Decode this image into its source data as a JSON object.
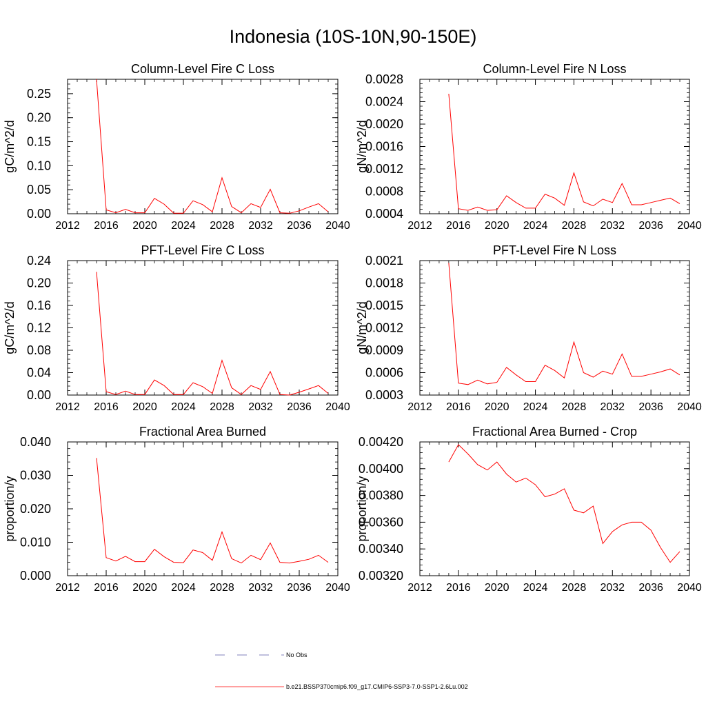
{
  "page_title": "Indonesia (10S-10N,90-150E)",
  "legend": {
    "items": [
      {
        "label": "No Obs",
        "style": "dashed",
        "color": "#5a5aa8"
      },
      {
        "label": "b.e21.BSSP370cmip6.f09_g17.CMIP6-SSP3-7.0-SSP1-2.6Lu.002",
        "style": "solid",
        "color": "#ff0000"
      }
    ]
  },
  "chart_data": [
    {
      "type": "line",
      "title": "Column-Level Fire C Loss",
      "ylabel": "gC/m^2/d",
      "xlim": [
        2012,
        2040
      ],
      "xticks": [
        2012,
        2016,
        2020,
        2024,
        2028,
        2032,
        2036,
        2040
      ],
      "xticklabels": [
        "2012",
        "2016",
        "2020",
        "2024",
        "2028",
        "2032",
        "2036",
        "2040"
      ],
      "ylim": [
        0,
        0.28
      ],
      "yticks": [
        0,
        0.05,
        0.1,
        0.15,
        0.2,
        0.25
      ],
      "yticklabels": [
        "0.00",
        "0.05",
        "0.10",
        "0.15",
        "0.20",
        "0.25"
      ],
      "series": [
        {
          "color": "#ff0000",
          "x": [
            2015,
            2016,
            2017,
            2018,
            2019,
            2020,
            2021,
            2022,
            2023,
            2024,
            2025,
            2026,
            2027,
            2028,
            2029,
            2030,
            2031,
            2032,
            2033,
            2034,
            2035,
            2036,
            2037,
            2038,
            2039
          ],
          "y": [
            0.28,
            0.008,
            0.002,
            0.009,
            0.002,
            0.002,
            0.032,
            0.02,
            0.001,
            0.001,
            0.027,
            0.019,
            0.004,
            0.075,
            0.015,
            0.002,
            0.021,
            0.013,
            0.051,
            0.002,
            0.001,
            0.006,
            0.014,
            0.021,
            0.004
          ]
        }
      ]
    },
    {
      "type": "line",
      "title": "Column-Level Fire N Loss",
      "ylabel": "gN/m^2/d",
      "xlim": [
        2012,
        2040
      ],
      "xticks": [
        2012,
        2016,
        2020,
        2024,
        2028,
        2032,
        2036,
        2040
      ],
      "xticklabels": [
        "2012",
        "2016",
        "2020",
        "2024",
        "2028",
        "2032",
        "2036",
        "2040"
      ],
      "ylim": [
        0.0004,
        0.0028
      ],
      "yticks": [
        0.0004,
        0.0008,
        0.0012,
        0.0016,
        0.002,
        0.0024,
        0.0028
      ],
      "yticklabels": [
        "0.0004",
        "0.0008",
        "0.0012",
        "0.0016",
        "0.0020",
        "0.0024",
        "0.0028"
      ],
      "series": [
        {
          "color": "#ff0000",
          "x": [
            2015,
            2016,
            2017,
            2018,
            2019,
            2020,
            2021,
            2022,
            2023,
            2024,
            2025,
            2026,
            2027,
            2028,
            2029,
            2030,
            2031,
            2032,
            2033,
            2034,
            2035,
            2036,
            2037,
            2038,
            2039
          ],
          "y": [
            0.00254,
            0.00049,
            0.00046,
            0.00052,
            0.00046,
            0.00047,
            0.00072,
            0.0006,
            0.0005,
            0.0005,
            0.00075,
            0.00068,
            0.00055,
            0.00113,
            0.00061,
            0.00054,
            0.00066,
            0.0006,
            0.00094,
            0.00056,
            0.00056,
            0.0006,
            0.00064,
            0.00068,
            0.00058
          ]
        }
      ]
    },
    {
      "type": "line",
      "title": "PFT-Level Fire C Loss",
      "ylabel": "gC/m^2/d",
      "xlim": [
        2012,
        2040
      ],
      "xticks": [
        2012,
        2016,
        2020,
        2024,
        2028,
        2032,
        2036,
        2040
      ],
      "xticklabels": [
        "2012",
        "2016",
        "2020",
        "2024",
        "2028",
        "2032",
        "2036",
        "2040"
      ],
      "ylim": [
        0,
        0.24
      ],
      "yticks": [
        0,
        0.04,
        0.08,
        0.12,
        0.16,
        0.2,
        0.24
      ],
      "yticklabels": [
        "0.00",
        "0.04",
        "0.08",
        "0.12",
        "0.16",
        "0.20",
        "0.24"
      ],
      "series": [
        {
          "color": "#ff0000",
          "x": [
            2015,
            2016,
            2017,
            2018,
            2019,
            2020,
            2021,
            2022,
            2023,
            2024,
            2025,
            2026,
            2027,
            2028,
            2029,
            2030,
            2031,
            2032,
            2033,
            2034,
            2035,
            2036,
            2037,
            2038,
            2039
          ],
          "y": [
            0.22,
            0.006,
            0.001,
            0.007,
            0.001,
            0.001,
            0.027,
            0.017,
            0.001,
            0.001,
            0.022,
            0.015,
            0.003,
            0.062,
            0.013,
            0.001,
            0.017,
            0.01,
            0.042,
            0.001,
            0.0,
            0.005,
            0.011,
            0.017,
            0.003
          ]
        }
      ]
    },
    {
      "type": "line",
      "title": "PFT-Level Fire N Loss",
      "ylabel": "gN/m^2/d",
      "xlim": [
        2012,
        2040
      ],
      "xticks": [
        2012,
        2016,
        2020,
        2024,
        2028,
        2032,
        2036,
        2040
      ],
      "xticklabels": [
        "2012",
        "2016",
        "2020",
        "2024",
        "2028",
        "2032",
        "2036",
        "2040"
      ],
      "ylim": [
        0.0003,
        0.0021
      ],
      "yticks": [
        0.0003,
        0.0006,
        0.0009,
        0.0012,
        0.0015,
        0.0018,
        0.0021
      ],
      "yticklabels": [
        "0.0003",
        "0.0006",
        "0.0009",
        "0.0012",
        "0.0015",
        "0.0018",
        "0.0021"
      ],
      "series": [
        {
          "color": "#ff0000",
          "x": [
            2015,
            2016,
            2017,
            2018,
            2019,
            2020,
            2021,
            2022,
            2023,
            2024,
            2025,
            2026,
            2027,
            2028,
            2029,
            2030,
            2031,
            2032,
            2033,
            2034,
            2035,
            2036,
            2037,
            2038,
            2039
          ],
          "y": [
            0.00207,
            0.00046,
            0.00044,
            0.0005,
            0.00045,
            0.00047,
            0.00067,
            0.00057,
            0.00048,
            0.00048,
            0.0007,
            0.00063,
            0.00053,
            0.00101,
            0.0006,
            0.00054,
            0.00062,
            0.00058,
            0.00085,
            0.00055,
            0.00055,
            0.00058,
            0.00061,
            0.00065,
            0.00057
          ]
        }
      ]
    },
    {
      "type": "line",
      "title": "Fractional Area Burned",
      "ylabel": "proportion/y",
      "xlim": [
        2012,
        2040
      ],
      "xticks": [
        2012,
        2016,
        2020,
        2024,
        2028,
        2032,
        2036,
        2040
      ],
      "xticklabels": [
        "2012",
        "2016",
        "2020",
        "2024",
        "2028",
        "2032",
        "2036",
        "2040"
      ],
      "ylim": [
        0,
        0.04
      ],
      "yticks": [
        0,
        0.01,
        0.02,
        0.03,
        0.04
      ],
      "yticklabels": [
        "0.000",
        "0.010",
        "0.020",
        "0.030",
        "0.040"
      ],
      "series": [
        {
          "color": "#ff0000",
          "x": [
            2015,
            2016,
            2017,
            2018,
            2019,
            2020,
            2021,
            2022,
            2023,
            2024,
            2025,
            2026,
            2027,
            2028,
            2029,
            2030,
            2031,
            2032,
            2033,
            2034,
            2035,
            2036,
            2037,
            2038,
            2039
          ],
          "y": [
            0.0352,
            0.0054,
            0.0044,
            0.0058,
            0.0042,
            0.0042,
            0.0079,
            0.0057,
            0.004,
            0.0039,
            0.0077,
            0.0069,
            0.0046,
            0.0131,
            0.0051,
            0.0038,
            0.0061,
            0.0048,
            0.0098,
            0.004,
            0.0038,
            0.0043,
            0.0049,
            0.0061,
            0.004
          ]
        }
      ]
    },
    {
      "type": "line",
      "title": "Fractional Area Burned - Crop",
      "ylabel": "proportion/y",
      "xlim": [
        2012,
        2040
      ],
      "xticks": [
        2012,
        2016,
        2020,
        2024,
        2028,
        2032,
        2036,
        2040
      ],
      "xticklabels": [
        "2012",
        "2016",
        "2020",
        "2024",
        "2028",
        "2032",
        "2036",
        "2040"
      ],
      "ylim": [
        0.0032,
        0.0042
      ],
      "yticks": [
        0.0032,
        0.0034,
        0.0036,
        0.0038,
        0.004,
        0.0042
      ],
      "yticklabels": [
        "0.00320",
        "0.00340",
        "0.00360",
        "0.00380",
        "0.00400",
        "0.00420"
      ],
      "series": [
        {
          "color": "#ff0000",
          "x": [
            2015,
            2016,
            2017,
            2018,
            2019,
            2020,
            2021,
            2022,
            2023,
            2024,
            2025,
            2026,
            2027,
            2028,
            2029,
            2030,
            2031,
            2032,
            2033,
            2034,
            2035,
            2036,
            2037,
            2038,
            2039
          ],
          "y": [
            0.00405,
            0.00418,
            0.00411,
            0.00403,
            0.00399,
            0.00405,
            0.00396,
            0.0039,
            0.00393,
            0.00388,
            0.00379,
            0.00381,
            0.00385,
            0.00369,
            0.00367,
            0.00372,
            0.00344,
            0.00353,
            0.00358,
            0.0036,
            0.0036,
            0.00354,
            0.00341,
            0.0033,
            0.00338
          ]
        }
      ]
    }
  ]
}
